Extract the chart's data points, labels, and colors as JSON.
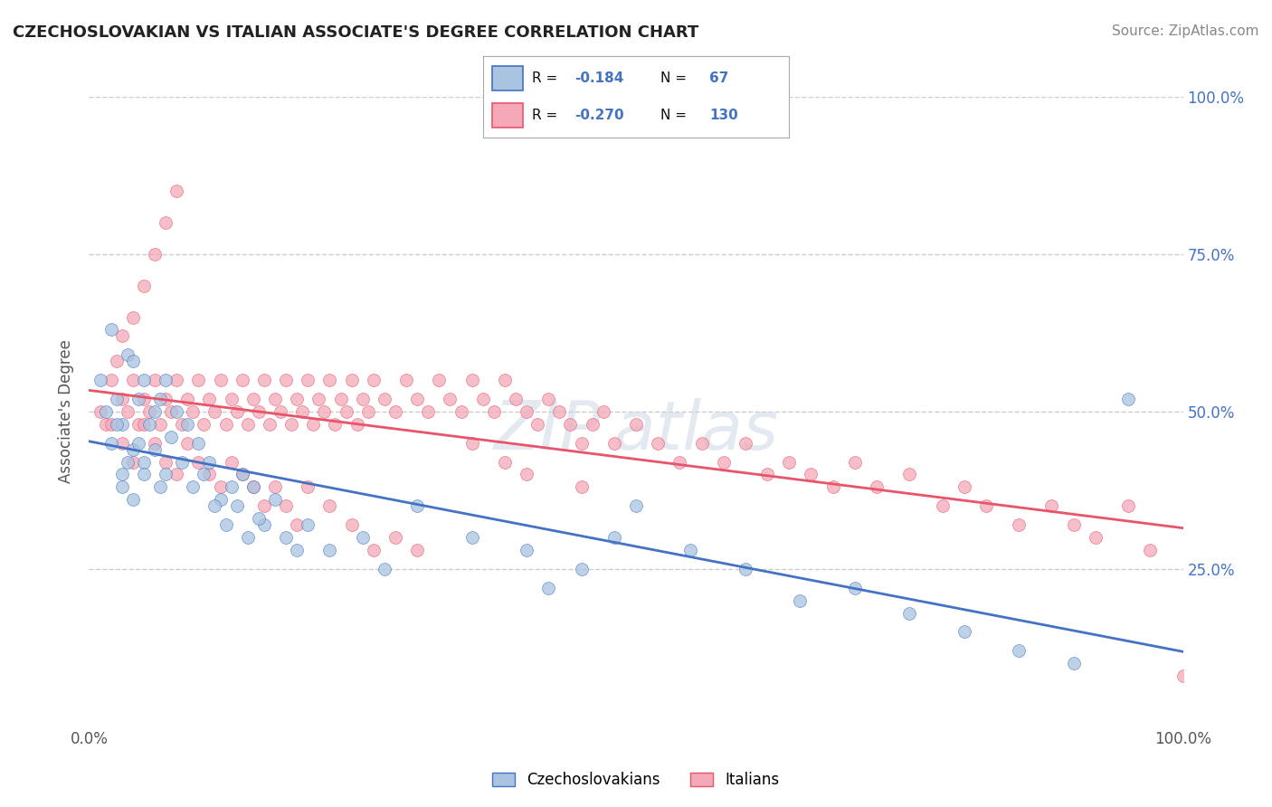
{
  "title": "CZECHOSLOVAKIAN VS ITALIAN ASSOCIATE'S DEGREE CORRELATION CHART",
  "source_text": "Source: ZipAtlas.com",
  "ylabel": "Associate's Degree",
  "legend_label1": "Czechoslovakians",
  "legend_label2": "Italians",
  "legend_R1": "-0.184",
  "legend_N1": "67",
  "legend_R2": "-0.270",
  "legend_N2": "130",
  "color_czech": "#a8c4e0",
  "color_italian": "#f4a8b8",
  "color_czech_line": "#4472c4",
  "color_italian_line": "#e8546a",
  "background_color": "#ffffff",
  "czech_x": [
    2.0,
    3.5,
    1.0,
    2.5,
    4.0,
    1.5,
    3.0,
    5.0,
    2.0,
    4.5,
    3.5,
    6.0,
    2.5,
    4.0,
    7.0,
    3.0,
    5.5,
    4.5,
    6.5,
    5.0,
    8.0,
    3.0,
    7.5,
    6.0,
    5.0,
    4.0,
    9.0,
    8.5,
    7.0,
    6.5,
    10.0,
    9.5,
    11.0,
    12.0,
    10.5,
    13.0,
    11.5,
    14.0,
    12.5,
    15.0,
    13.5,
    16.0,
    14.5,
    17.0,
    15.5,
    18.0,
    19.0,
    20.0,
    25.0,
    22.0,
    30.0,
    35.0,
    27.0,
    40.0,
    45.0,
    50.0,
    55.0,
    60.0,
    42.0,
    48.0,
    65.0,
    70.0,
    75.0,
    80.0,
    85.0,
    90.0,
    95.0
  ],
  "czech_y": [
    63.0,
    59.0,
    55.0,
    52.0,
    58.0,
    50.0,
    48.0,
    55.0,
    45.0,
    52.0,
    42.0,
    50.0,
    48.0,
    44.0,
    55.0,
    40.0,
    48.0,
    45.0,
    52.0,
    42.0,
    50.0,
    38.0,
    46.0,
    44.0,
    40.0,
    36.0,
    48.0,
    42.0,
    40.0,
    38.0,
    45.0,
    38.0,
    42.0,
    36.0,
    40.0,
    38.0,
    35.0,
    40.0,
    32.0,
    38.0,
    35.0,
    32.0,
    30.0,
    36.0,
    33.0,
    30.0,
    28.0,
    32.0,
    30.0,
    28.0,
    35.0,
    30.0,
    25.0,
    28.0,
    25.0,
    35.0,
    28.0,
    25.0,
    22.0,
    30.0,
    20.0,
    22.0,
    18.0,
    15.0,
    12.0,
    10.0,
    52.0
  ],
  "italian_x": [
    1.0,
    2.0,
    3.0,
    1.5,
    2.5,
    3.5,
    4.0,
    4.5,
    5.0,
    5.5,
    6.0,
    6.5,
    7.0,
    7.5,
    8.0,
    8.5,
    9.0,
    9.5,
    10.0,
    10.5,
    11.0,
    11.5,
    12.0,
    12.5,
    13.0,
    13.5,
    14.0,
    14.5,
    15.0,
    15.5,
    16.0,
    16.5,
    17.0,
    17.5,
    18.0,
    18.5,
    19.0,
    19.5,
    20.0,
    20.5,
    21.0,
    21.5,
    22.0,
    22.5,
    23.0,
    23.5,
    24.0,
    24.5,
    25.0,
    25.5,
    26.0,
    27.0,
    28.0,
    29.0,
    30.0,
    31.0,
    32.0,
    33.0,
    34.0,
    35.0,
    36.0,
    37.0,
    38.0,
    39.0,
    40.0,
    41.0,
    42.0,
    43.0,
    44.0,
    45.0,
    46.0,
    47.0,
    48.0,
    50.0,
    52.0,
    54.0,
    56.0,
    58.0,
    60.0,
    62.0,
    64.0,
    66.0,
    68.0,
    70.0,
    72.0,
    75.0,
    78.0,
    80.0,
    82.0,
    85.0,
    88.0,
    90.0,
    92.0,
    95.0,
    97.0,
    100.0,
    2.0,
    3.0,
    4.0,
    5.0,
    6.0,
    7.0,
    8.0,
    9.0,
    10.0,
    11.0,
    12.0,
    13.0,
    14.0,
    15.0,
    16.0,
    17.0,
    18.0,
    19.0,
    20.0,
    22.0,
    24.0,
    26.0,
    28.0,
    30.0,
    3.0,
    4.0,
    5.0,
    6.0,
    7.0,
    8.0,
    35.0,
    38.0,
    40.0,
    45.0
  ],
  "italian_y": [
    50.0,
    55.0,
    52.0,
    48.0,
    58.0,
    50.0,
    55.0,
    48.0,
    52.0,
    50.0,
    55.0,
    48.0,
    52.0,
    50.0,
    55.0,
    48.0,
    52.0,
    50.0,
    55.0,
    48.0,
    52.0,
    50.0,
    55.0,
    48.0,
    52.0,
    50.0,
    55.0,
    48.0,
    52.0,
    50.0,
    55.0,
    48.0,
    52.0,
    50.0,
    55.0,
    48.0,
    52.0,
    50.0,
    55.0,
    48.0,
    52.0,
    50.0,
    55.0,
    48.0,
    52.0,
    50.0,
    55.0,
    48.0,
    52.0,
    50.0,
    55.0,
    52.0,
    50.0,
    55.0,
    52.0,
    50.0,
    55.0,
    52.0,
    50.0,
    55.0,
    52.0,
    50.0,
    55.0,
    52.0,
    50.0,
    48.0,
    52.0,
    50.0,
    48.0,
    45.0,
    48.0,
    50.0,
    45.0,
    48.0,
    45.0,
    42.0,
    45.0,
    42.0,
    45.0,
    40.0,
    42.0,
    40.0,
    38.0,
    42.0,
    38.0,
    40.0,
    35.0,
    38.0,
    35.0,
    32.0,
    35.0,
    32.0,
    30.0,
    35.0,
    28.0,
    8.0,
    48.0,
    45.0,
    42.0,
    48.0,
    45.0,
    42.0,
    40.0,
    45.0,
    42.0,
    40.0,
    38.0,
    42.0,
    40.0,
    38.0,
    35.0,
    38.0,
    35.0,
    32.0,
    38.0,
    35.0,
    32.0,
    28.0,
    30.0,
    28.0,
    62.0,
    65.0,
    70.0,
    75.0,
    80.0,
    85.0,
    45.0,
    42.0,
    40.0,
    38.0
  ]
}
